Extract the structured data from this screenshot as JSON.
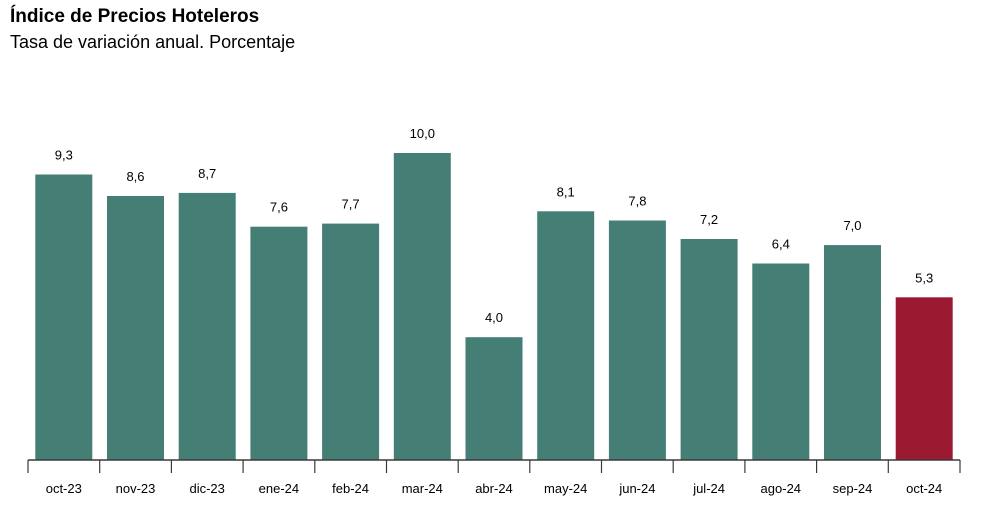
{
  "title": "Índice de Precios Hoteleros",
  "subtitle": "Tasa de variación anual. Porcentaje",
  "colors": {
    "bar": "#457e75",
    "highlight": "#9c1932",
    "axis": "#3a3a3a"
  },
  "chart_data": {
    "type": "bar",
    "title": "Índice de Precios Hoteleros",
    "subtitle": "Tasa de variación anual. Porcentaje",
    "categories": [
      "oct-23",
      "nov-23",
      "dic-23",
      "ene-24",
      "feb-24",
      "mar-24",
      "abr-24",
      "may-24",
      "jun-24",
      "jul-24",
      "ago-24",
      "sep-24",
      "oct-24"
    ],
    "values": [
      9.3,
      8.6,
      8.7,
      7.6,
      7.7,
      10.0,
      4.0,
      8.1,
      7.8,
      7.2,
      6.4,
      7.0,
      5.3
    ],
    "labels": [
      "9,3",
      "8,6",
      "8,7",
      "7,6",
      "7,7",
      "10,0",
      "4,0",
      "8,1",
      "7,8",
      "7,2",
      "6,4",
      "7,0",
      "5,3"
    ],
    "highlight_index": 12,
    "ylim": [
      0,
      10
    ],
    "grid": false,
    "legend": "none"
  }
}
